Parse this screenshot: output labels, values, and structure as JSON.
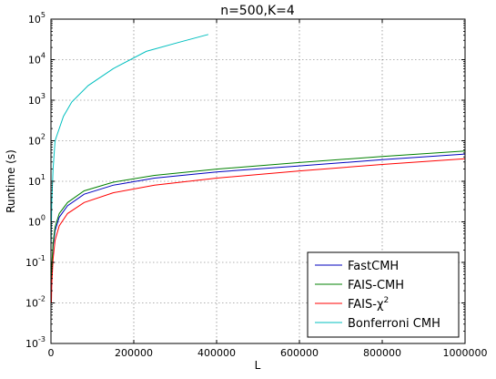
{
  "chart_data": {
    "type": "line",
    "title": "n=500,K=4",
    "xlabel": "L",
    "ylabel": "Runtime (s)",
    "xlim": [
      0,
      1000000
    ],
    "ylim": [
      0.001,
      100000
    ],
    "yscale": "log",
    "grid": true,
    "legend": "bottom-right",
    "xticks": [
      0,
      200000,
      400000,
      600000,
      800000,
      1000000
    ],
    "xtick_labels": [
      "0",
      "200000",
      "400000",
      "600000",
      "800000",
      "1000000"
    ],
    "yticks": [
      0.001,
      0.01,
      0.1,
      1,
      10,
      100,
      1000,
      10000,
      100000
    ],
    "ytick_labels": [
      {
        "base": "10",
        "exp": "-3"
      },
      {
        "base": "10",
        "exp": "-2"
      },
      {
        "base": "10",
        "exp": "-1"
      },
      {
        "base": "10",
        "exp": "0"
      },
      {
        "base": "10",
        "exp": "1"
      },
      {
        "base": "10",
        "exp": "2"
      },
      {
        "base": "10",
        "exp": "3"
      },
      {
        "base": "10",
        "exp": "4"
      },
      {
        "base": "10",
        "exp": "5"
      }
    ],
    "series": [
      {
        "name": "FastCMH",
        "color": "#0000bf",
        "x": [
          1000,
          2000,
          5000,
          10000,
          20000,
          40000,
          80000,
          150000,
          250000,
          400000,
          600000,
          800000,
          1000000
        ],
        "y": [
          0.02,
          0.06,
          0.25,
          0.6,
          1.3,
          2.5,
          4.8,
          8,
          12,
          17,
          24,
          34,
          47
        ]
      },
      {
        "name": "FAIS-CMH",
        "color": "#008000",
        "x": [
          1000,
          2000,
          5000,
          10000,
          20000,
          40000,
          80000,
          150000,
          250000,
          400000,
          600000,
          800000,
          1000000
        ],
        "y": [
          0.025,
          0.08,
          0.3,
          0.75,
          1.6,
          3.0,
          5.8,
          9.5,
          14,
          20,
          29,
          41,
          56
        ]
      },
      {
        "name": "FAIS-χ",
        "name_sup": "2",
        "color": "#ff0000",
        "x": [
          1000,
          2000,
          5000,
          10000,
          20000,
          40000,
          80000,
          150000,
          250000,
          400000,
          600000,
          800000,
          1000000
        ],
        "y": [
          0.01,
          0.03,
          0.12,
          0.35,
          0.8,
          1.6,
          3.0,
          5.2,
          8,
          12,
          18,
          26,
          36
        ]
      },
      {
        "name": "Bonferroni CMH",
        "color": "#00bfbf",
        "x": [
          500,
          2000,
          5000,
          10000,
          20000,
          30000,
          50000,
          90000,
          150000,
          230000,
          310000,
          380000
        ],
        "y": [
          0.3,
          3,
          20,
          100,
          200,
          400,
          900,
          2300,
          6000,
          16000,
          27000,
          42000
        ]
      }
    ]
  }
}
